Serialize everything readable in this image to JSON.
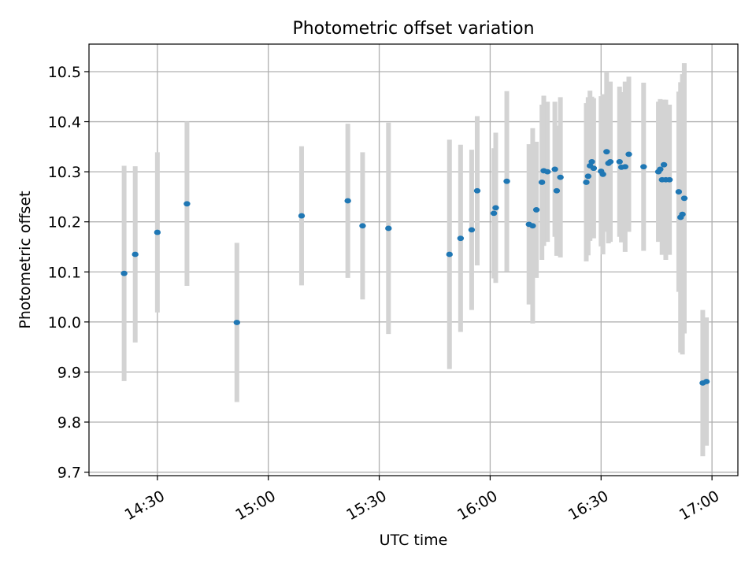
{
  "chart_data": {
    "type": "scatter",
    "title": "Photometric offset variation",
    "xlabel": "UTC time",
    "ylabel": "Photometric offset",
    "xlim": [
      "14:11:30",
      "17:07:00"
    ],
    "ylim": [
      9.693,
      10.555
    ],
    "xticks": [
      "14:30",
      "15:00",
      "15:30",
      "16:00",
      "16:30",
      "17:00"
    ],
    "yticks": [
      9.7,
      9.8,
      9.9,
      10.0,
      10.1,
      10.2,
      10.3,
      10.4,
      10.5
    ],
    "grid": true,
    "colors": {
      "point": "#1f77b4",
      "errorbar": "#d3d3d3",
      "grid": "#b0b0b0"
    },
    "x": [
      "14:21:00",
      "14:24:00",
      "14:30:00",
      "14:38:00",
      "14:51:30",
      "15:09:00",
      "15:21:30",
      "15:25:30",
      "15:32:30",
      "15:49:00",
      "15:52:00",
      "15:55:00",
      "15:56:30",
      "16:01:00",
      "16:01:30",
      "16:04:30",
      "16:10:30",
      "16:11:30",
      "16:12:30",
      "16:14:00",
      "16:14:30",
      "16:15:30",
      "16:17:30",
      "16:18:00",
      "16:19:00",
      "16:26:00",
      "16:26:30",
      "16:27:00",
      "16:27:30",
      "16:28:00",
      "16:30:00",
      "16:30:30",
      "16:31:30",
      "16:32:00",
      "16:32:30",
      "16:35:00",
      "16:35:30",
      "16:36:30",
      "16:37:30",
      "16:41:30",
      "16:45:30",
      "16:46:00",
      "16:46:30",
      "16:47:00",
      "16:47:30",
      "16:48:30",
      "16:51:00",
      "16:51:30",
      "16:52:00",
      "16:52:30",
      "16:57:30",
      "16:58:30"
    ],
    "y": [
      10.097,
      10.135,
      10.179,
      10.236,
      9.999,
      10.212,
      10.242,
      10.192,
      10.187,
      10.135,
      10.167,
      10.184,
      10.262,
      10.217,
      10.228,
      10.281,
      10.195,
      10.192,
      10.224,
      10.279,
      10.302,
      10.3,
      10.305,
      10.262,
      10.289,
      10.279,
      10.291,
      10.312,
      10.32,
      10.307,
      10.301,
      10.295,
      10.34,
      10.317,
      10.32,
      10.32,
      10.309,
      10.31,
      10.335,
      10.31,
      10.3,
      10.305,
      10.284,
      10.314,
      10.284,
      10.284,
      10.26,
      10.209,
      10.215,
      10.247,
      9.878,
      9.881
    ],
    "yerr": [
      0.215,
      0.176,
      0.16,
      0.164,
      0.159,
      0.139,
      0.154,
      0.147,
      0.211,
      0.229,
      0.187,
      0.16,
      0.149,
      0.13,
      0.15,
      0.18,
      0.16,
      0.195,
      0.136,
      0.155,
      0.15,
      0.14,
      0.135,
      0.13,
      0.16,
      0.158,
      0.158,
      0.15,
      0.13,
      0.14,
      0.15,
      0.16,
      0.16,
      0.16,
      0.16,
      0.15,
      0.15,
      0.17,
      0.155,
      0.168,
      0.14,
      0.14,
      0.15,
      0.13,
      0.16,
      0.15,
      0.2,
      0.27,
      0.28,
      0.27,
      0.146,
      0.128
    ]
  }
}
